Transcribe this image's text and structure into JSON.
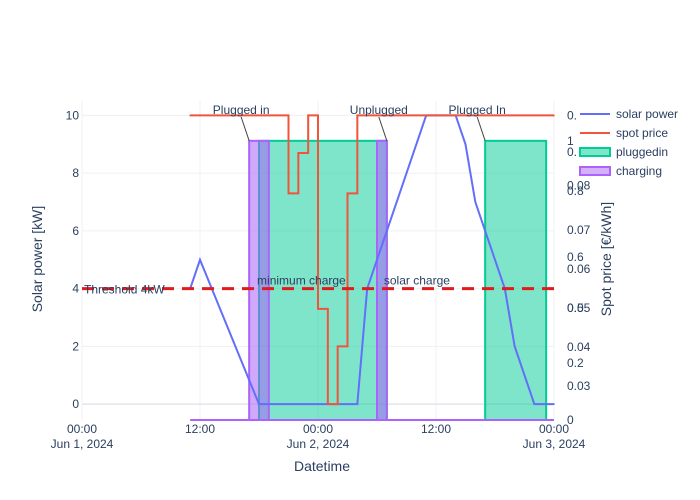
{
  "chart_data": {
    "type": "line",
    "xlabel": "Datetime",
    "ylabel_left": "Solar power [kW]",
    "ylabel_right": "Spot price [€/kWh]",
    "x_range_hours": [
      0,
      48
    ],
    "x_ticks": [
      {
        "hour": 0,
        "line1": "00:00",
        "line2": "Jun 1, 2024"
      },
      {
        "hour": 12,
        "line1": "12:00",
        "line2": ""
      },
      {
        "hour": 24,
        "line1": "00:00",
        "line2": "Jun 2, 2024"
      },
      {
        "hour": 36,
        "line1": "12:00",
        "line2": ""
      },
      {
        "hour": 48,
        "line1": "00:00",
        "line2": "Jun 3, 2024"
      }
    ],
    "y_left_range": [
      -0.55,
      10.5
    ],
    "y_left_ticks": [
      0,
      2,
      4,
      6,
      8,
      10
    ],
    "y_right_ticks": [
      {
        "label": "0",
        "solar_equiv": -0.55
      },
      {
        "label": "0.03",
        "solar_equiv": 0.62
      },
      {
        "label": "0.2",
        "solar_equiv": 1.43
      },
      {
        "label": "0.04",
        "solar_equiv": 1.98
      },
      {
        "label": "0.05",
        "solar_equiv": 3.33
      },
      {
        "label": "0.5",
        "solar_equiv": 3.33
      },
      {
        "label": "0.06",
        "solar_equiv": 4.68
      },
      {
        "label": "0.6",
        "solar_equiv": 5.1
      },
      {
        "label": "0.07",
        "solar_equiv": 6.03
      },
      {
        "label": "0.8",
        "solar_equiv": 7.38
      },
      {
        "label": "0.08",
        "solar_equiv": 7.58
      },
      {
        "label": "0.",
        "solar_equiv": 8.73
      },
      {
        "label": "1",
        "solar_equiv": 9.12
      },
      {
        "label": "0.",
        "solar_equiv": 10.0
      }
    ],
    "series": [
      {
        "name": "solar power",
        "kind": "line",
        "color": "#636efa",
        "x": [
          11,
          12,
          18,
          28,
          29,
          30,
          31,
          32,
          33,
          34,
          35,
          36,
          37,
          38,
          39,
          40,
          41,
          42,
          43,
          44,
          45,
          46,
          47,
          48
        ],
        "y": [
          4,
          5,
          0,
          0,
          4,
          5,
          6,
          7,
          8,
          9,
          10,
          10,
          10,
          10,
          9,
          7,
          6,
          5,
          4,
          2,
          1,
          0,
          0,
          0
        ]
      },
      {
        "name": "spot price",
        "kind": "step",
        "color": "#ef553b",
        "x": [
          11,
          21,
          22,
          23,
          24,
          25,
          26,
          27,
          28,
          29,
          30,
          31,
          48
        ],
        "y": [
          10,
          7.3,
          8.7,
          10,
          3.3,
          0,
          2,
          7.3,
          10,
          10,
          10,
          10,
          10
        ]
      },
      {
        "name": "pluggedin",
        "kind": "area",
        "color": "#00cc96",
        "segments": [
          [
            18,
            31,
            9.12
          ],
          [
            41,
            47.2,
            9.12
          ]
        ]
      },
      {
        "name": "charging",
        "kind": "area",
        "color": "#ab63fa",
        "segments": [
          [
            17,
            19,
            9.12
          ],
          [
            30,
            31,
            9.12
          ]
        ]
      }
    ],
    "threshold": {
      "label": "Threshold 4kW",
      "value": 4,
      "color": "#e31a1c"
    },
    "annotations": [
      {
        "text": "Plugged in",
        "hour": 17,
        "y": 9.12
      },
      {
        "text": "Unplugged",
        "hour": 31,
        "y": 9.12
      },
      {
        "text": "Plugged In",
        "hour": 41,
        "y": 9.12
      },
      {
        "text": "minimum charge",
        "hour": 17.8,
        "y": 4
      },
      {
        "text": "solar charge",
        "hour": 30.7,
        "y": 4
      }
    ],
    "legend": {
      "placement": "top-right",
      "items": [
        {
          "label": "solar power",
          "color": "#636efa",
          "kind": "line"
        },
        {
          "label": "spot price",
          "color": "#ef553b",
          "kind": "line"
        },
        {
          "label": "pluggedin",
          "color": "#00cc96",
          "kind": "area"
        },
        {
          "label": "charging",
          "color": "#ab63fa",
          "kind": "area"
        }
      ]
    }
  }
}
